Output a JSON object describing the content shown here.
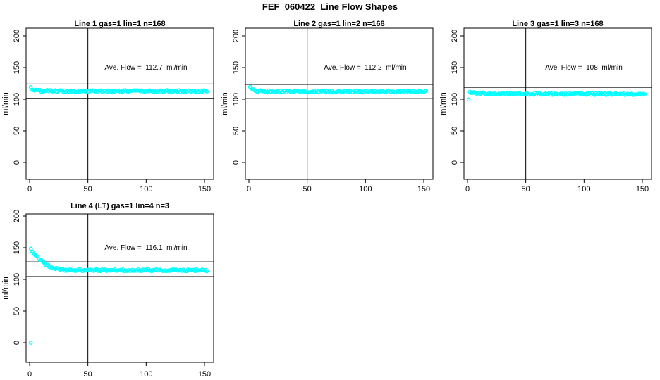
{
  "chart_data": {
    "type": "scatter",
    "title": "FEF_060422  Line Flow Shapes",
    "ylabel": "ml/min",
    "xlabel": "",
    "x_ticks": [
      0,
      50,
      100,
      150
    ],
    "y_ticks": [
      0,
      50,
      100,
      150,
      200
    ],
    "xlim": [
      -3,
      158
    ],
    "ylim": [
      -26,
      212
    ],
    "grid": false,
    "legend": "none",
    "marker": "open-circle",
    "marker_color": "#00FFFF",
    "line_color": "#000000",
    "layout": "2 rows x 3 cols; subplots 1-3 on top row, subplot 4 at bottom-left",
    "subplots": [
      {
        "title": "Line 1 gas=1 lin=1 n=168",
        "annotation": "Ave. Flow =  112.7  ml/min",
        "ave_flow_ml_min": 112.7,
        "n": 168,
        "vline_x": 50,
        "hlines": [
          124.0,
          101.4
        ],
        "profile_keypoints": [
          [
            1,
            118.5
          ],
          [
            2,
            116
          ],
          [
            3,
            114.8
          ],
          [
            5,
            113.8
          ],
          [
            10,
            113.2
          ],
          [
            20,
            113
          ],
          [
            50,
            112.8
          ],
          [
            100,
            112.9
          ],
          [
            152,
            112.6
          ]
        ],
        "outliers": []
      },
      {
        "title": "Line 2 gas=1 lin=2 n=168",
        "annotation": "Ave. Flow =  112.2  ml/min",
        "ave_flow_ml_min": 112.2,
        "n": 168,
        "vline_x": 50,
        "hlines": [
          123.4,
          101.0
        ],
        "profile_keypoints": [
          [
            1,
            119.5
          ],
          [
            2,
            117
          ],
          [
            3,
            115
          ],
          [
            5,
            113.5
          ],
          [
            10,
            112.6
          ],
          [
            20,
            112.3
          ],
          [
            50,
            112.1
          ],
          [
            100,
            112.3
          ],
          [
            152,
            112.1
          ]
        ],
        "outliers": []
      },
      {
        "title": "Line 3 gas=1 lin=3 n=168",
        "annotation": "Ave. Flow =  108  ml/min",
        "ave_flow_ml_min": 108,
        "n": 168,
        "vline_x": 50,
        "hlines": [
          118.8,
          97.2
        ],
        "profile_keypoints": [
          [
            1,
            100.5
          ],
          [
            2,
            110.5
          ],
          [
            3,
            111
          ],
          [
            5,
            110.4
          ],
          [
            10,
            109.4
          ],
          [
            20,
            108.8
          ],
          [
            50,
            108.4
          ],
          [
            100,
            108.4
          ],
          [
            152,
            108
          ]
        ],
        "outliers": []
      },
      {
        "title": "Line 4 (LT) gas=1 lin=4 n=3",
        "annotation": "Ave. Flow =  116.1  ml/min",
        "ave_flow_ml_min": 116.1,
        "n": 3,
        "vline_x": 50,
        "hlines": [
          127.7,
          104.5
        ],
        "profile_keypoints": [
          [
            1,
            147
          ],
          [
            2,
            145
          ],
          [
            4,
            141
          ],
          [
            6,
            137
          ],
          [
            8,
            133
          ],
          [
            10,
            129.5
          ],
          [
            12,
            126.5
          ],
          [
            15,
            122.5
          ],
          [
            18,
            119.5
          ],
          [
            21,
            117.5
          ],
          [
            25,
            116
          ],
          [
            30,
            115.2
          ],
          [
            40,
            114.7
          ],
          [
            60,
            114.4
          ],
          [
            100,
            114.6
          ],
          [
            152,
            114.2
          ]
        ],
        "outliers": [
          [
            1,
            0
          ]
        ]
      }
    ]
  }
}
